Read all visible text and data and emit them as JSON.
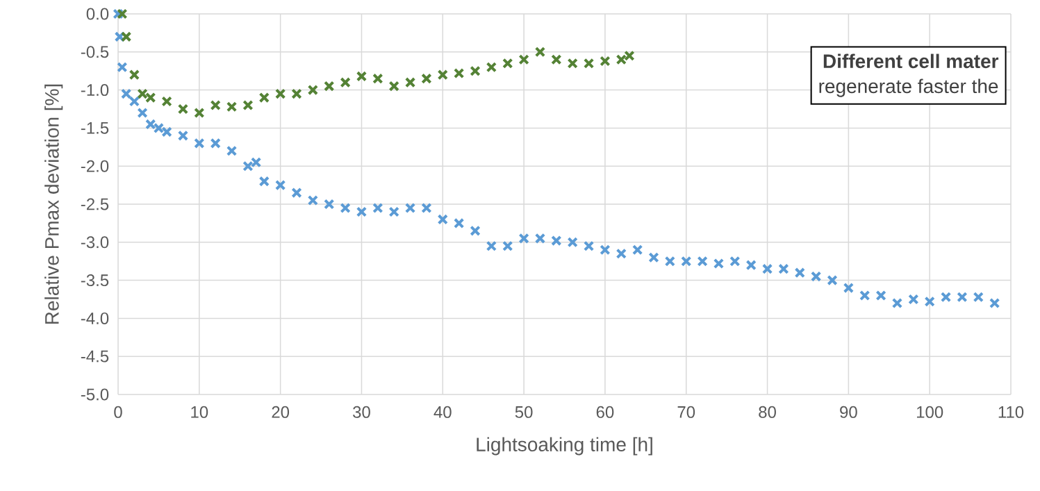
{
  "chart_data": {
    "type": "scatter",
    "xlabel": "Lightsoaking time [h]",
    "ylabel": "Relative Pmax deviation [%]",
    "xlim": [
      0,
      110
    ],
    "ylim": [
      -5,
      0
    ],
    "xticks": [
      0,
      10,
      20,
      30,
      40,
      50,
      60,
      70,
      80,
      90,
      100,
      110
    ],
    "yticks": [
      {
        "value": -5,
        "label": "-5.0"
      },
      {
        "value": -4.5,
        "label": "-4.5"
      },
      {
        "value": -4,
        "label": "-4.0"
      },
      {
        "value": -3.5,
        "label": "-3.5"
      },
      {
        "value": -3,
        "label": "-3.0"
      },
      {
        "value": -2.5,
        "label": "-2.5"
      },
      {
        "value": -2,
        "label": "-2.0"
      },
      {
        "value": -1.5,
        "label": "-1.5"
      },
      {
        "value": -1,
        "label": "-1.0"
      },
      {
        "value": -0.5,
        "label": "-0.5"
      },
      {
        "value": 0,
        "label": "0.0"
      }
    ],
    "grid": true,
    "marker": "cross",
    "annotations": [
      "Different cell mater",
      "regenerate faster the"
    ],
    "series": [
      {
        "color": "#5b9bd5",
        "x": [
          0,
          0.2,
          0.5,
          1,
          2,
          3,
          4,
          5,
          6,
          8,
          10,
          12,
          14,
          16,
          17,
          18,
          20,
          22,
          24,
          26,
          28,
          30,
          32,
          34,
          36,
          38,
          40,
          42,
          44,
          46,
          48,
          50,
          52,
          54,
          56,
          58,
          60,
          62,
          64,
          66,
          68,
          70,
          72,
          74,
          76,
          78,
          80,
          82,
          84,
          86,
          88,
          90,
          92,
          94,
          96,
          98,
          100,
          102,
          104,
          106,
          108
        ],
        "values": [
          0.0,
          -0.3,
          -0.7,
          -1.05,
          -1.15,
          -1.3,
          -1.45,
          -1.5,
          -1.55,
          -1.6,
          -1.7,
          -1.7,
          -1.8,
          -2.0,
          -1.95,
          -2.2,
          -2.25,
          -2.35,
          -2.45,
          -2.5,
          -2.55,
          -2.6,
          -2.55,
          -2.6,
          -2.55,
          -2.55,
          -2.7,
          -2.75,
          -2.85,
          -3.05,
          -3.05,
          -2.95,
          -2.95,
          -2.98,
          -3.0,
          -3.05,
          -3.1,
          -3.15,
          -3.1,
          -3.2,
          -3.25,
          -3.25,
          -3.25,
          -3.28,
          -3.25,
          -3.3,
          -3.35,
          -3.35,
          -3.4,
          -3.45,
          -3.5,
          -3.6,
          -3.7,
          -3.7,
          -3.8,
          -3.75,
          -3.78,
          -3.72,
          -3.72,
          -3.72,
          -3.8
        ]
      },
      {
        "color": "#548235",
        "x": [
          0.5,
          1,
          2,
          3,
          4,
          6,
          8,
          10,
          12,
          14,
          16,
          18,
          20,
          22,
          24,
          26,
          28,
          30,
          32,
          34,
          36,
          38,
          40,
          42,
          44,
          46,
          48,
          50,
          52,
          54,
          56,
          58,
          60,
          62,
          63
        ],
        "values": [
          0.0,
          -0.3,
          -0.8,
          -1.05,
          -1.1,
          -1.15,
          -1.25,
          -1.3,
          -1.2,
          -1.22,
          -1.2,
          -1.1,
          -1.05,
          -1.05,
          -1.0,
          -0.95,
          -0.9,
          -0.82,
          -0.85,
          -0.95,
          -0.9,
          -0.85,
          -0.8,
          -0.78,
          -0.75,
          -0.7,
          -0.65,
          -0.6,
          -0.5,
          -0.6,
          -0.65,
          -0.65,
          -0.62,
          -0.6,
          -0.55
        ]
      }
    ]
  }
}
